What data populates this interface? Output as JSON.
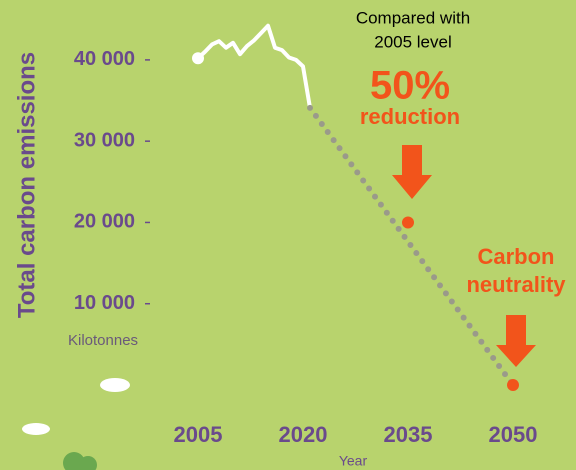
{
  "chart_data": {
    "type": "line",
    "y_label": "Total carbon emissions",
    "y_unit": "Kilotonnes",
    "x_label": "Year",
    "annotations": {
      "comparison": [
        "Compared with",
        "2005 level"
      ],
      "reduction_value": "50%",
      "reduction_text": "reduction",
      "neutrality": [
        "Carbon",
        "neutrality"
      ]
    },
    "xlim": [
      2005,
      2050
    ],
    "xticks": [
      2005,
      2020,
      2035,
      2050
    ],
    "ylim": [
      0,
      47000
    ],
    "yticks": [
      {
        "value": 10000,
        "label": "10 000"
      },
      {
        "value": 20000,
        "label": "20 000"
      },
      {
        "value": 30000,
        "label": "30 000"
      },
      {
        "value": 40000,
        "label": "40 000"
      }
    ],
    "series": [
      {
        "color": "#ffffff",
        "style": "solid",
        "x": [
          2005,
          2006,
          2007,
          2008,
          2009,
          2010,
          2011,
          2012,
          2013,
          2014,
          2015,
          2016,
          2017,
          2018,
          2019,
          2020,
          2021
        ],
        "values": [
          40200,
          41000,
          41900,
          42300,
          41500,
          42100,
          40700,
          41700,
          42400,
          43300,
          44200,
          41500,
          41200,
          40300,
          40000,
          39200,
          34100
        ]
      },
      {
        "color": "#9a9a8a",
        "style": "dotted",
        "x": [
          2021,
          2050
        ],
        "values": [
          34100,
          0
        ]
      },
      {
        "color": "#f2541b",
        "style": "points",
        "x": [
          2035,
          2050
        ],
        "values": [
          20000,
          0
        ]
      }
    ]
  }
}
